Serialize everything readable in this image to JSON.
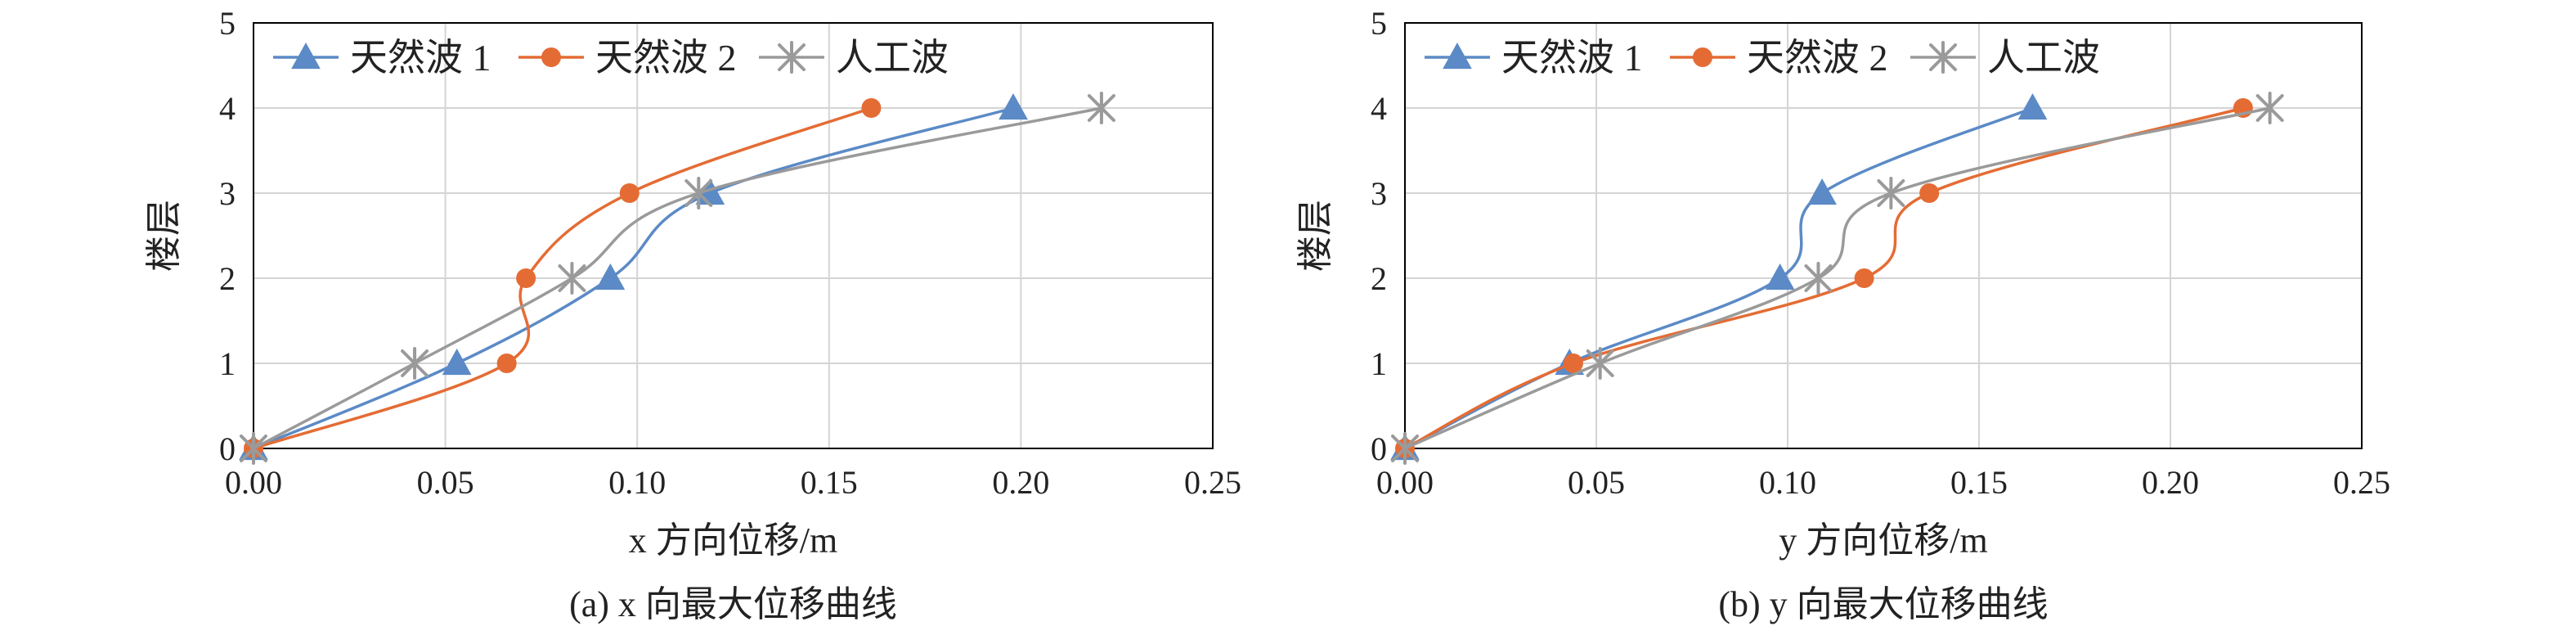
{
  "chart_data": [
    {
      "type": "line",
      "subplot": "(a)",
      "caption": "(a) x 向最大位移曲线",
      "xlabel": "x 方向位移/m",
      "ylabel": "楼层",
      "xlim": [
        0,
        0.25
      ],
      "ylim": [
        0,
        5
      ],
      "xticks": [
        "0.00",
        "0.05",
        "0.10",
        "0.15",
        "0.20",
        "0.25"
      ],
      "yticks": [
        "0",
        "1",
        "2",
        "3",
        "4",
        "5"
      ],
      "grid": true,
      "smooth": true,
      "legend_position": "top-left",
      "series": [
        {
          "name": "天然波 1",
          "color": "#5b8ac6",
          "marker": "triangle",
          "x": [
            0.0,
            0.053,
            0.093,
            0.119,
            0.198
          ],
          "y": [
            0,
            1,
            2,
            3,
            4
          ]
        },
        {
          "name": "天然波 2",
          "color": "#e46c34",
          "marker": "circle",
          "x": [
            0.0,
            0.066,
            0.071,
            0.098,
            0.161
          ],
          "y": [
            0,
            1,
            2,
            3,
            4
          ]
        },
        {
          "name": "人工波",
          "color": "#9a9a9a",
          "marker": "star",
          "x": [
            0.0,
            0.042,
            0.083,
            0.116,
            0.221
          ],
          "y": [
            0,
            1,
            2,
            3,
            4
          ]
        }
      ]
    },
    {
      "type": "line",
      "subplot": "(b)",
      "caption": "(b) y 向最大位移曲线",
      "xlabel": "y 方向位移/m",
      "ylabel": "楼层",
      "xlim": [
        0,
        0.25
      ],
      "ylim": [
        0,
        5
      ],
      "xticks": [
        "0.00",
        "0.05",
        "0.10",
        "0.15",
        "0.20",
        "0.25"
      ],
      "yticks": [
        "0",
        "1",
        "2",
        "3",
        "4",
        "5"
      ],
      "grid": true,
      "smooth": true,
      "legend_position": "top-left",
      "series": [
        {
          "name": "天然波 1",
          "color": "#5b8ac6",
          "marker": "triangle",
          "x": [
            0.0,
            0.043,
            0.098,
            0.109,
            0.164
          ],
          "y": [
            0,
            1,
            2,
            3,
            4
          ]
        },
        {
          "name": "天然波 2",
          "color": "#e46c34",
          "marker": "circle",
          "x": [
            0.0,
            0.044,
            0.12,
            0.137,
            0.219
          ],
          "y": [
            0,
            1,
            2,
            3,
            4
          ]
        },
        {
          "name": "人工波",
          "color": "#9a9a9a",
          "marker": "star",
          "x": [
            0.0,
            0.051,
            0.108,
            0.127,
            0.226
          ],
          "y": [
            0,
            1,
            2,
            3,
            4
          ]
        }
      ]
    }
  ]
}
